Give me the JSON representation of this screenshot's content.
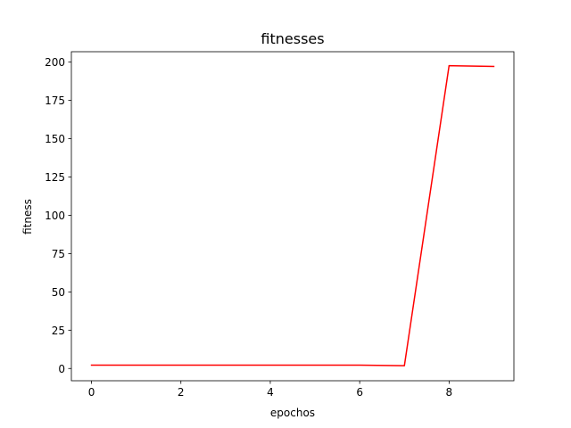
{
  "chart_data": {
    "type": "line",
    "title": "fitnesses",
    "xlabel": "epochos",
    "ylabel": "fitness",
    "xlim": [
      -0.45,
      9.45
    ],
    "ylim": [
      -8.0,
      206.8
    ],
    "xticks": [
      0,
      2,
      4,
      6,
      8
    ],
    "yticks": [
      0,
      25,
      50,
      75,
      100,
      125,
      150,
      175,
      200
    ],
    "grid": false,
    "legend": "none",
    "series": [
      {
        "color": "#ff0000",
        "x": [
          0,
          1,
          2,
          3,
          4,
          5,
          6,
          7,
          8,
          9
        ],
        "y": [
          2.2,
          2.2,
          2.2,
          2.2,
          2.2,
          2.2,
          2.2,
          1.8,
          197.7,
          197.2
        ]
      }
    ]
  }
}
